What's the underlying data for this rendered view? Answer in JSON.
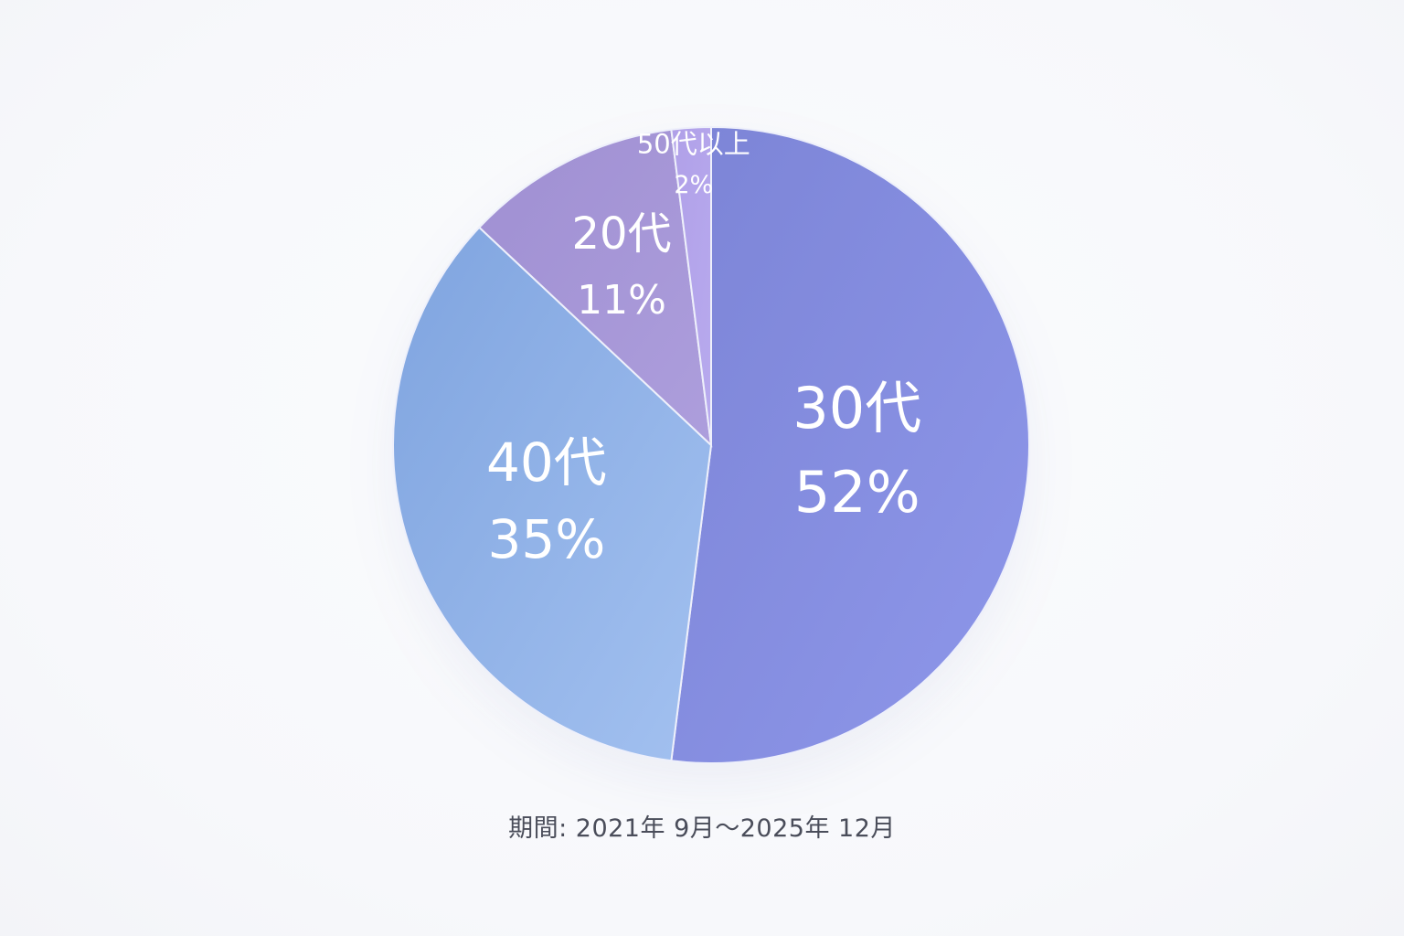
{
  "chart_data": {
    "type": "pie",
    "categories": [
      "30代",
      "40代",
      "20代",
      "50代以上"
    ],
    "values": [
      52,
      35,
      11,
      2
    ],
    "labels": [
      {
        "name": "30代",
        "pct": "52%"
      },
      {
        "name": "40代",
        "pct": "35%"
      },
      {
        "name": "20代",
        "pct": "11%"
      },
      {
        "name": "50代以上",
        "pct": "2%"
      }
    ],
    "colors": [
      "#8a91e0",
      "#93b2e8",
      "#a797d8",
      "#b3a4ea"
    ],
    "start_angle": "12 o'clock",
    "direction": "clockwise"
  },
  "footer": {
    "period": "期間: 2021年 9月〜2025年 12月"
  }
}
